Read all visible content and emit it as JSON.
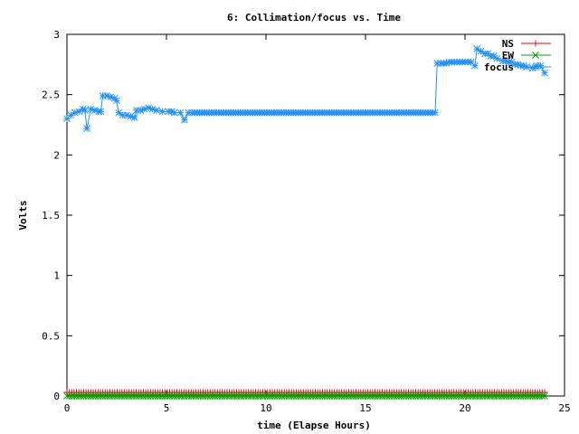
{
  "chart_data": {
    "type": "line",
    "title": "6: Collimation/focus vs. Time",
    "xlabel": "time (Elapse Hours)",
    "ylabel": "Volts",
    "xlim": [
      0,
      25
    ],
    "ylim": [
      0,
      3
    ],
    "xticks": [
      "0",
      "5",
      "10",
      "15",
      "20",
      "25"
    ],
    "yticks": [
      "0",
      "0.5",
      "1",
      "1.5",
      "2",
      "2.5",
      "3"
    ],
    "grid": false,
    "legend_position": "top-right",
    "series": [
      {
        "name": "NS",
        "color": "#ff0000",
        "marker": "plus",
        "x": [
          0,
          24
        ],
        "y": [
          0.03,
          0.03
        ]
      },
      {
        "name": "EW",
        "color": "#00a000",
        "marker": "x",
        "x": [
          0,
          24
        ],
        "y": [
          0.0,
          0.0
        ]
      },
      {
        "name": "focus",
        "color": "#1e90ff",
        "marker": "star",
        "x": [
          0,
          0.2,
          0.4,
          0.6,
          0.8,
          0.9,
          1.0,
          1.2,
          1.4,
          1.6,
          1.7,
          1.8,
          2.0,
          2.2,
          2.4,
          2.5,
          2.6,
          2.8,
          3.0,
          3.2,
          3.4,
          3.5,
          3.7,
          3.9,
          4.1,
          4.3,
          4.5,
          4.8,
          5.1,
          5.4,
          5.7,
          5.9,
          6.1,
          6.3,
          18.5,
          18.6,
          18.8,
          19.2,
          19.6,
          20.0,
          20.3,
          20.5,
          20.6,
          20.8,
          21.0,
          21.3,
          21.6,
          21.9,
          22.2,
          22.5,
          22.8,
          23.1,
          23.4,
          23.6,
          23.8,
          24.0
        ],
        "y": [
          2.3,
          2.33,
          2.35,
          2.36,
          2.38,
          2.37,
          2.22,
          2.38,
          2.37,
          2.36,
          2.36,
          2.49,
          2.49,
          2.48,
          2.47,
          2.45,
          2.35,
          2.33,
          2.33,
          2.32,
          2.31,
          2.37,
          2.37,
          2.38,
          2.39,
          2.38,
          2.37,
          2.36,
          2.36,
          2.35,
          2.35,
          2.29,
          2.35,
          2.35,
          2.35,
          2.76,
          2.76,
          2.77,
          2.77,
          2.77,
          2.77,
          2.74,
          2.88,
          2.86,
          2.84,
          2.82,
          2.8,
          2.78,
          2.77,
          2.75,
          2.74,
          2.73,
          2.72,
          2.74,
          2.74,
          2.68
        ]
      }
    ]
  }
}
